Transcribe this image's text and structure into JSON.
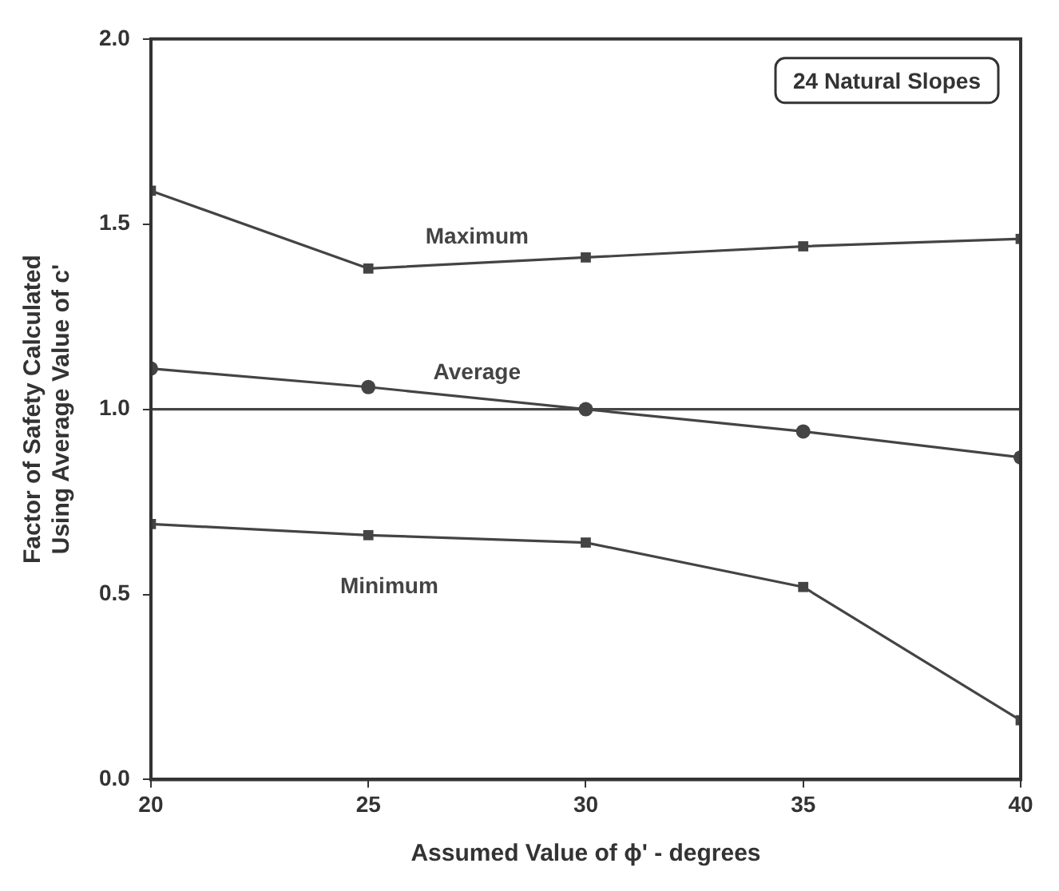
{
  "chart_data": {
    "type": "line",
    "xlabel": "Assumed Value of ϕ' - degrees",
    "ylabel": "Factor of Safety Calculated\nUsing Average Value of c'",
    "x": [
      20,
      25,
      30,
      35,
      40
    ],
    "series": [
      {
        "name": "Maximum",
        "color": "#444444",
        "marker": "square",
        "values": [
          1.59,
          1.38,
          1.41,
          1.44,
          1.46
        ]
      },
      {
        "name": "Average",
        "color": "#444444",
        "marker": "circle",
        "values": [
          1.11,
          1.06,
          1.0,
          0.94,
          0.87
        ]
      },
      {
        "name": "Minimum",
        "color": "#444444",
        "marker": "square",
        "values": [
          0.69,
          0.66,
          0.64,
          0.52,
          0.16
        ]
      }
    ],
    "ref_lines": [
      {
        "axis": "y",
        "value": 1.0,
        "color": "#444444"
      }
    ],
    "annotations": [
      "24 Natural Slopes"
    ],
    "xlim": [
      20,
      40
    ],
    "xticks": [
      20,
      25,
      30,
      35,
      40
    ],
    "ylim": [
      0,
      2
    ],
    "yticks": [
      {
        "value": 0,
        "label": "0.0"
      },
      0.5,
      {
        "value": 1,
        "label": "1.0"
      },
      1.5,
      {
        "value": 2,
        "label": "2.0"
      }
    ],
    "grid": false,
    "legend": false
  }
}
